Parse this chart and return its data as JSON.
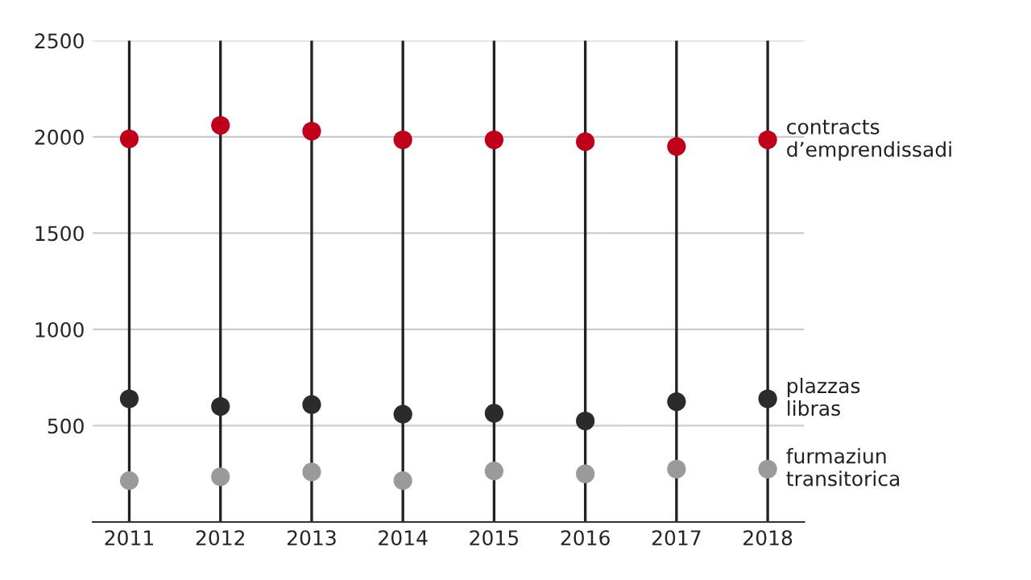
{
  "chart_data": {
    "type": "scatter",
    "categories": [
      "2011",
      "2012",
      "2013",
      "2014",
      "2015",
      "2016",
      "2017",
      "2018"
    ],
    "series": [
      {
        "name": "contracts\nd’emprendissadi",
        "color": "#c0001a",
        "values": [
          1990,
          2060,
          2030,
          1985,
          1985,
          1975,
          1950,
          1985
        ]
      },
      {
        "name": "plazzas\nlibras",
        "color": "#2b2b2b",
        "values": [
          640,
          600,
          610,
          560,
          565,
          525,
          625,
          640
        ]
      },
      {
        "name": "furmaziun\ntransitorica",
        "color": "#9a9a9a",
        "values": [
          215,
          235,
          260,
          215,
          265,
          250,
          275,
          275
        ]
      }
    ],
    "ylim": [
      0,
      2500
    ],
    "yticks": [
      {
        "value": 0,
        "label": null
      },
      500,
      1000,
      1500,
      2000,
      2500
    ],
    "grid": true,
    "marker": "circle"
  }
}
